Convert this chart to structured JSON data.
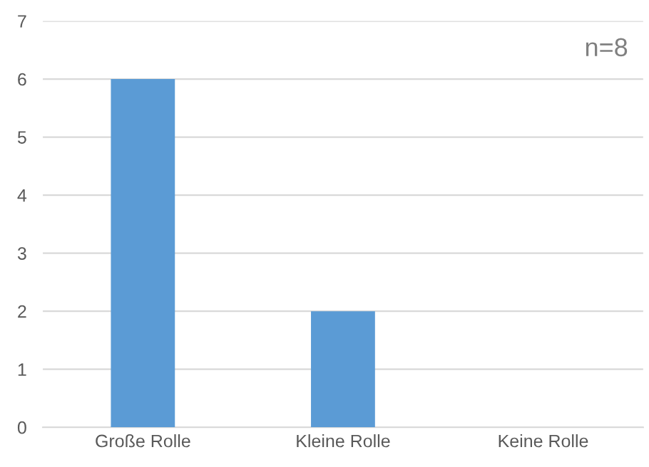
{
  "chart_data": {
    "type": "bar",
    "categories": [
      "Große Rolle",
      "Kleine Rolle",
      "Keine Rolle"
    ],
    "values": [
      6,
      2,
      0
    ],
    "color": "#5b9bd5",
    "ylim": [
      0,
      7
    ],
    "yticks": [
      0,
      1,
      2,
      3,
      4,
      5,
      6,
      7
    ],
    "grid": "y",
    "annotations": [
      "n=8"
    ]
  }
}
